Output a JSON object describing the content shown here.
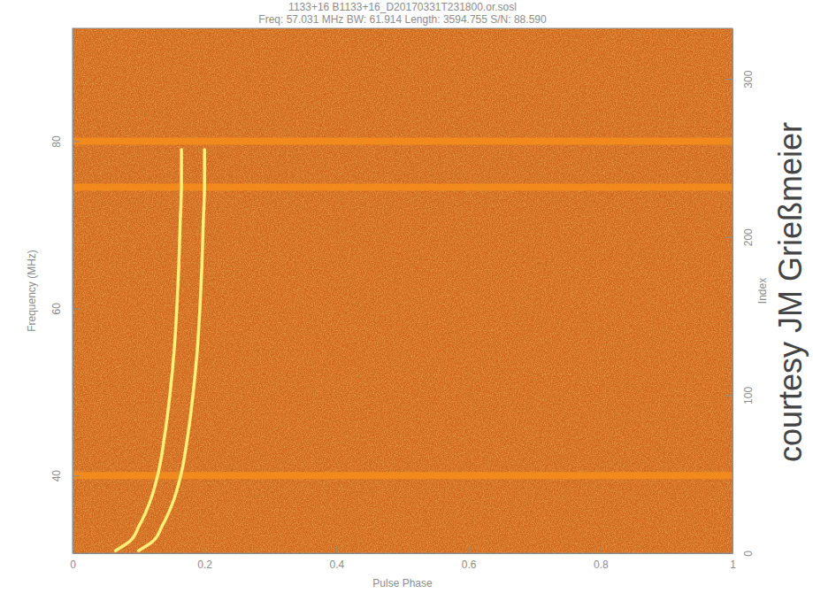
{
  "chart_data": {
    "type": "line",
    "title": "1133+16 B1133+16_D20170331T231800.or.sosl",
    "subtitle": "Freq: 57.031 MHz BW: 61.914 Length: 3594.755 S/N: 88.590",
    "x_label": "Pulse Phase",
    "y_label": "Frequency (MHz)",
    "y2_label": "Index",
    "annotation": "courtesy JM Grießmeier",
    "xlim": [
      0,
      1
    ],
    "xticks": [
      0,
      0.2,
      0.4,
      0.6,
      0.8,
      1
    ],
    "ylim": [
      30.7,
      93.5
    ],
    "yticks": [
      40,
      60,
      80
    ],
    "y2lim": [
      0,
      332
    ],
    "y2ticks": [
      0,
      100,
      200,
      300
    ],
    "series": [
      {
        "color": "#fff07a",
        "x": [
          0.165,
          0.165,
          0.163,
          0.161,
          0.158,
          0.154,
          0.148,
          0.14,
          0.129,
          0.118,
          0.101,
          0.085,
          0.065
        ],
        "values": [
          79,
          75,
          70,
          65,
          60,
          55,
          50,
          45,
          40,
          37,
          34,
          32,
          31
        ]
      },
      {
        "color": "#fff07a",
        "x": [
          0.2,
          0.2,
          0.198,
          0.196,
          0.193,
          0.189,
          0.183,
          0.175,
          0.164,
          0.153,
          0.136,
          0.12,
          0.1
        ],
        "values": [
          79,
          75,
          70,
          65,
          60,
          55,
          50,
          45,
          40,
          37,
          34,
          32,
          31
        ]
      }
    ],
    "bands": [
      80,
      74.5,
      40
    ]
  }
}
